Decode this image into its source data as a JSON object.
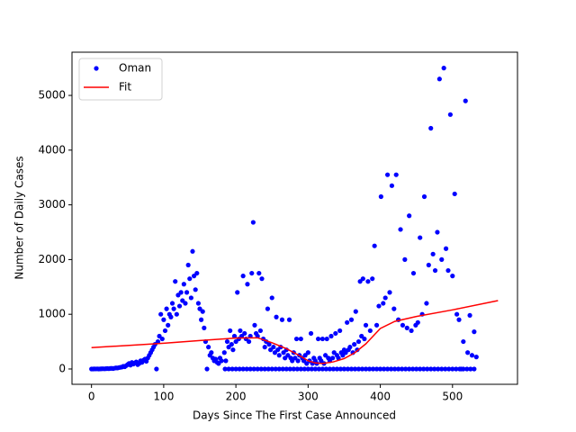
{
  "chart_data": {
    "type": "scatter",
    "xlabel": "Days Since The First Case Announced",
    "ylabel": "Number of Daily Cases",
    "xlim": [
      -27,
      590
    ],
    "ylim": [
      -280,
      5790
    ],
    "xticks": [
      0,
      100,
      200,
      300,
      400,
      500
    ],
    "yticks": [
      0,
      1000,
      2000,
      3000,
      4000,
      5000
    ],
    "grid": false,
    "legend": "upper left",
    "series": [
      {
        "name": "Oman",
        "type": "scatter",
        "color": "#0000ff",
        "x": [
          0,
          2,
          4,
          6,
          8,
          10,
          12,
          14,
          16,
          18,
          20,
          22,
          24,
          26,
          28,
          30,
          32,
          34,
          36,
          38,
          40,
          42,
          44,
          46,
          48,
          50,
          52,
          54,
          56,
          58,
          60,
          62,
          64,
          66,
          68,
          70,
          72,
          74,
          76,
          78,
          80,
          82,
          84,
          86,
          88,
          90,
          92,
          94,
          96,
          98,
          100,
          102,
          104,
          106,
          108,
          110,
          112,
          114,
          116,
          118,
          120,
          122,
          124,
          126,
          128,
          130,
          132,
          134,
          136,
          138,
          140,
          142,
          144,
          146,
          148,
          150,
          152,
          154,
          156,
          158,
          160,
          162,
          164,
          166,
          168,
          170,
          172,
          174,
          176,
          178,
          180,
          184,
          186,
          188,
          190,
          192,
          194,
          196,
          198,
          200,
          202,
          204,
          206,
          208,
          210,
          212,
          214,
          216,
          218,
          220,
          222,
          224,
          226,
          228,
          230,
          232,
          234,
          236,
          238,
          240,
          242,
          244,
          246,
          248,
          250,
          252,
          254,
          256,
          258,
          260,
          262,
          264,
          266,
          268,
          270,
          272,
          274,
          276,
          278,
          280,
          282,
          284,
          286,
          288,
          290,
          292,
          294,
          296,
          298,
          300,
          302,
          304,
          306,
          308,
          310,
          312,
          314,
          316,
          318,
          320,
          322,
          324,
          326,
          328,
          330,
          332,
          334,
          336,
          338,
          340,
          342,
          344,
          346,
          348,
          350,
          352,
          354,
          356,
          358,
          360,
          362,
          364,
          366,
          368,
          370,
          372,
          374,
          376,
          378,
          380,
          383,
          386,
          389,
          392,
          395,
          398,
          401,
          404,
          407,
          410,
          413,
          416,
          419,
          422,
          425,
          428,
          431,
          434,
          437,
          440,
          443,
          446,
          449,
          452,
          455,
          458,
          461,
          464,
          467,
          470,
          473,
          476,
          479,
          482,
          485,
          488,
          491,
          494,
          497,
          500,
          503,
          506,
          509,
          512,
          515,
          518,
          521,
          524,
          527,
          530,
          533,
          185,
          190,
          195,
          200,
          205,
          210,
          215,
          220,
          225,
          230,
          235,
          240,
          245,
          250,
          255,
          260,
          265,
          270,
          275,
          280,
          285,
          290,
          295,
          300,
          305,
          310,
          315,
          320,
          325,
          330,
          335,
          340,
          345,
          350,
          355,
          360,
          365,
          370,
          375,
          380,
          385,
          390,
          395,
          400,
          405,
          410,
          415,
          420,
          425,
          430,
          435,
          440,
          445,
          450,
          455,
          460,
          465,
          470,
          475,
          480,
          485,
          490,
          495,
          500,
          505,
          510,
          515,
          520,
          525,
          530
        ],
        "values": [
          0,
          0,
          2,
          1,
          3,
          0,
          2,
          4,
          5,
          3,
          6,
          8,
          5,
          10,
          12,
          8,
          15,
          20,
          18,
          25,
          30,
          35,
          50,
          40,
          60,
          80,
          100,
          70,
          120,
          90,
          110,
          130,
          80,
          100,
          150,
          120,
          160,
          180,
          140,
          200,
          250,
          300,
          350,
          400,
          450,
          0,
          500,
          600,
          1000,
          550,
          900,
          700,
          1100,
          800,
          1000,
          950,
          1200,
          1100,
          1600,
          1000,
          1350,
          1150,
          1400,
          1250,
          1550,
          1200,
          1400,
          1900,
          1650,
          1300,
          2150,
          1700,
          1450,
          1750,
          1200,
          1100,
          900,
          1050,
          750,
          500,
          0,
          400,
          250,
          300,
          200,
          150,
          180,
          120,
          100,
          200,
          150,
          300,
          150,
          500,
          400,
          700,
          450,
          350,
          600,
          500,
          1400,
          550,
          700,
          600,
          1700,
          650,
          550,
          1550,
          500,
          600,
          1750,
          2680,
          800,
          650,
          600,
          1750,
          700,
          1650,
          550,
          400,
          500,
          1100,
          450,
          350,
          1300,
          400,
          300,
          950,
          350,
          250,
          400,
          900,
          300,
          200,
          350,
          250,
          900,
          200,
          150,
          300,
          200,
          550,
          150,
          250,
          550,
          200,
          150,
          250,
          100,
          300,
          150,
          650,
          100,
          200,
          150,
          100,
          550,
          200,
          150,
          550,
          100,
          250,
          550,
          200,
          150,
          600,
          200,
          300,
          650,
          250,
          200,
          700,
          300,
          250,
          350,
          300,
          850,
          350,
          400,
          900,
          300,
          450,
          1050,
          350,
          500,
          1600,
          600,
          1650,
          550,
          800,
          1600,
          700,
          1650,
          2250,
          800,
          1150,
          3150,
          1200,
          1300,
          3550,
          1400,
          3350,
          1100,
          3550,
          900,
          2550,
          800,
          2000,
          750,
          2800,
          700,
          1750,
          800,
          850,
          2400,
          1000,
          3150,
          1200,
          1900,
          4400,
          2100,
          1800,
          2500,
          5300,
          2000,
          5500,
          2200,
          1800,
          4650,
          1700,
          3200,
          1000,
          900,
          0,
          500,
          4900,
          300,
          980,
          250,
          680,
          220,
          0,
          0,
          0,
          0,
          0,
          0,
          0,
          0,
          0,
          0,
          0,
          0,
          0,
          0,
          0,
          0,
          0,
          0,
          0,
          0,
          0,
          0,
          0,
          0,
          0,
          0,
          0,
          0,
          0,
          0,
          0,
          0,
          0,
          0,
          0,
          0,
          0,
          0,
          0,
          0,
          0,
          0,
          0,
          0,
          0,
          0,
          0,
          0,
          0,
          0,
          0,
          0,
          0,
          0,
          0,
          0,
          0,
          0,
          0,
          0,
          0,
          0,
          0,
          0,
          0,
          0,
          0,
          0,
          0,
          0
        ]
      },
      {
        "name": "Fit",
        "type": "line",
        "color": "#ff0000",
        "x": [
          0,
          50,
          100,
          150,
          200,
          230,
          250,
          270,
          290,
          300,
          310,
          320,
          335,
          350,
          365,
          380,
          400,
          420,
          450,
          500,
          563
        ],
        "values": [
          390,
          430,
          470,
          520,
          565,
          570,
          480,
          370,
          230,
          150,
          110,
          100,
          130,
          190,
          300,
          460,
          740,
          870,
          960,
          1080,
          1250
        ]
      }
    ]
  }
}
